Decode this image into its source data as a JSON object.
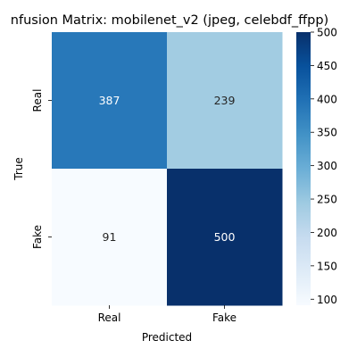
{
  "chart_data": {
    "type": "heatmap",
    "title": "nfusion Matrix: mobilenet_v2 (jpeg, celebdf_ffpp)",
    "xlabel": "Predicted",
    "ylabel": "True",
    "x_categories": [
      "Real",
      "Fake"
    ],
    "y_categories": [
      "Real",
      "Fake"
    ],
    "values": [
      [
        387,
        239
      ],
      [
        91,
        500
      ]
    ],
    "colormap": "Blues",
    "color_range": [
      91,
      500
    ],
    "colorbar_ticks": [
      100,
      150,
      200,
      250,
      300,
      350,
      400,
      450,
      500
    ],
    "grid": false
  }
}
